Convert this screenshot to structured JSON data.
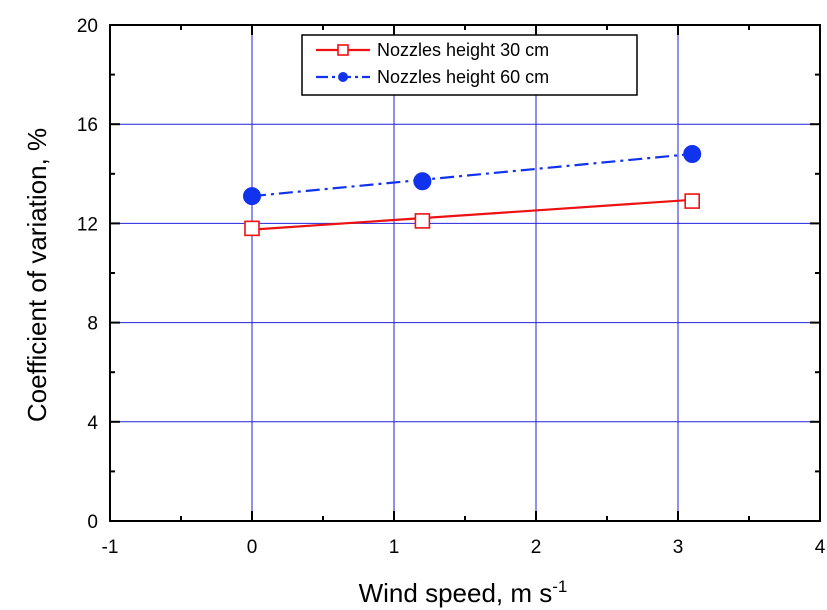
{
  "chart_data": {
    "type": "line",
    "xlabel": "Wind speed, m s",
    "xlabel_superscript": "-1",
    "ylabel": "Coefficient of variation, %",
    "xlim": [
      -1,
      4
    ],
    "ylim": [
      0,
      20
    ],
    "x_ticks": [
      "-1",
      "0",
      "1",
      "2",
      "3",
      "4"
    ],
    "y_ticks": [
      "0",
      "4",
      "8",
      "12",
      "16",
      "20"
    ],
    "grid": true,
    "legend_position": "top-center",
    "series": [
      {
        "name": "Nozzles height 30 cm",
        "color": "#ee1111",
        "line_style": "solid",
        "marker": "open-square",
        "x": [
          0,
          1.2,
          3.1
        ],
        "y": [
          11.8,
          12.1,
          12.9
        ],
        "fit": [
          [
            0,
            11.75
          ],
          [
            3.1,
            12.95
          ]
        ]
      },
      {
        "name": "Nozzles height 60 cm",
        "color": "#1133ee",
        "line_style": "dash-dot",
        "marker": "filled-circle",
        "x": [
          0,
          1.2,
          3.1
        ],
        "y": [
          13.1,
          13.7,
          14.8
        ],
        "fit": [
          [
            0,
            13.1
          ],
          [
            3.1,
            14.8
          ]
        ]
      }
    ]
  }
}
